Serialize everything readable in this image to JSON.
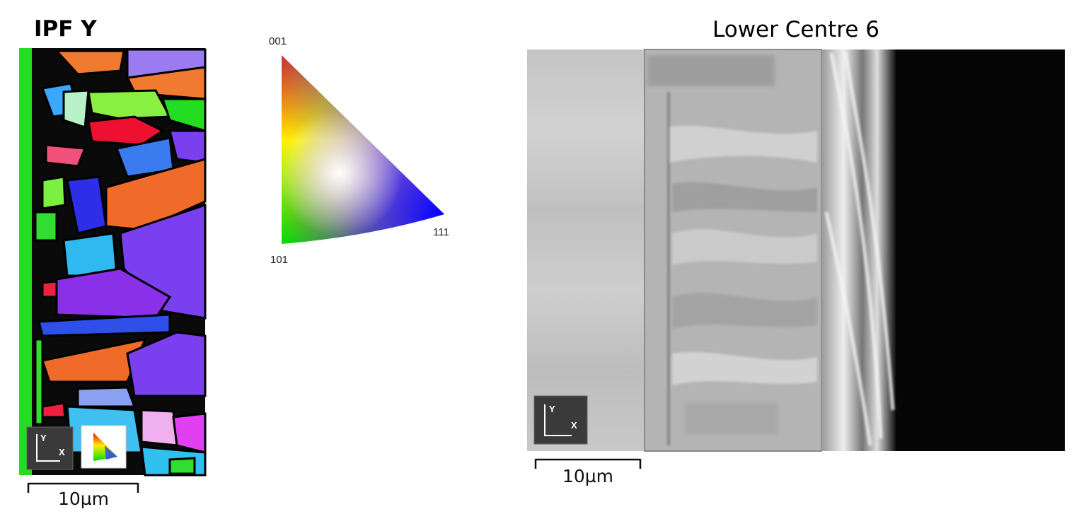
{
  "left_panel": {
    "title": "IPF Y",
    "scale_bar": "10µm",
    "axes": {
      "y": "Y",
      "x": "X"
    }
  },
  "ipf_key": {
    "corners": [
      "001",
      "101",
      "111"
    ]
  },
  "right_panel": {
    "title": "Lower Centre 6",
    "scale_bar": "10µm",
    "axes": {
      "y": "Y",
      "x": "X"
    }
  }
}
